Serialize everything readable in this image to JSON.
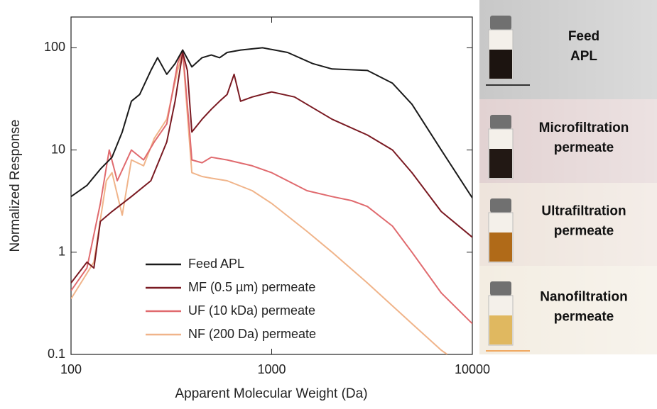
{
  "chart_data": {
    "type": "line",
    "x_label": "Apparent Molecular Weight (Da)",
    "y_label": "Normalized Response",
    "log_x": true,
    "log_y": true,
    "xlim": [
      100,
      10000
    ],
    "xticks": [
      100,
      1000,
      10000
    ],
    "ylim": [
      0.1,
      200
    ],
    "yticks": [
      0.1,
      1,
      10,
      100
    ],
    "legend_position": "lower left",
    "series": [
      {
        "name": "Feed APL",
        "color": "#1a1a1a",
        "x": [
          100,
          120,
          140,
          160,
          180,
          200,
          220,
          250,
          270,
          300,
          330,
          360,
          400,
          450,
          500,
          550,
          600,
          700,
          900,
          1200,
          1600,
          2000,
          3000,
          4000,
          5000,
          7000,
          10000
        ],
        "values": [
          3.5,
          4.5,
          6.5,
          8.5,
          15,
          30,
          35,
          60,
          80,
          55,
          70,
          95,
          65,
          80,
          85,
          80,
          90,
          95,
          100,
          90,
          70,
          62,
          60,
          45,
          28,
          10,
          3.4
        ]
      },
      {
        "name": "MF (0.5  µm) permeate",
        "color": "#7a1a22",
        "x": [
          100,
          120,
          130,
          140,
          160,
          200,
          250,
          300,
          330,
          360,
          380,
          400,
          450,
          500,
          550,
          600,
          650,
          700,
          800,
          1000,
          1300,
          2000,
          3000,
          4000,
          5000,
          7000,
          10000
        ],
        "values": [
          0.5,
          0.8,
          0.7,
          2,
          2.5,
          3.5,
          5,
          12,
          30,
          90,
          60,
          15,
          20,
          25,
          30,
          35,
          55,
          30,
          33,
          37,
          33,
          20,
          14,
          10,
          6,
          2.5,
          1.4
        ]
      },
      {
        "name": "UF (10 kDa) permeate",
        "color": "#e06a6e",
        "x": [
          100,
          120,
          140,
          155,
          170,
          200,
          230,
          260,
          300,
          340,
          360,
          390,
          400,
          450,
          500,
          600,
          800,
          1000,
          1500,
          2000,
          2500,
          3000,
          4000,
          5000,
          7000,
          10000
        ],
        "values": [
          0.42,
          0.7,
          3,
          10,
          5,
          10,
          8,
          12,
          18,
          70,
          95,
          15,
          8,
          7.5,
          8.5,
          8,
          7,
          6,
          4,
          3.5,
          3.2,
          2.8,
          1.8,
          1,
          0.4,
          0.2
        ]
      },
      {
        "name": "NF (200 Da) permeate",
        "color": "#f0b48a",
        "x": [
          100,
          130,
          150,
          160,
          180,
          200,
          230,
          260,
          300,
          340,
          360,
          400,
          450,
          500,
          600,
          800,
          1000,
          1500,
          2000,
          3000,
          5000,
          7000,
          7500
        ],
        "values": [
          0.35,
          0.8,
          5,
          6,
          2.3,
          8,
          7,
          13,
          20,
          60,
          90,
          6,
          5.5,
          5.3,
          5,
          4,
          3,
          1.6,
          1,
          0.5,
          0.2,
          0.11,
          0.1
        ]
      }
    ]
  },
  "side_panels": [
    {
      "lines": [
        "Feed",
        "APL"
      ],
      "liquid": "#1c1410",
      "rule": "#333333",
      "bg": "#c8c8c8"
    },
    {
      "lines": [
        "Microfiltration",
        "permeate"
      ],
      "liquid": "#221814",
      "rule": "#8a2a30",
      "bg": "#e2d2d2"
    },
    {
      "lines": [
        "Ultrafiltration",
        "permeate"
      ],
      "liquid": "#b06a18",
      "rule": "#e07070",
      "bg": "#eee4dc"
    },
    {
      "lines": [
        "Nanofiltration",
        "permeate"
      ],
      "liquid": "#e0b860",
      "rule": "#f0a860",
      "bg": "#f3ede2"
    }
  ]
}
